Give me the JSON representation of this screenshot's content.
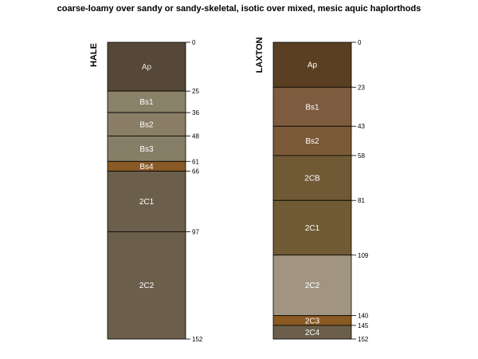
{
  "title": "coarse-loamy over sandy or sandy-skeletal, isotic over mixed, mesic aquic haplorthods",
  "profiles": [
    {
      "name": "HALE",
      "horizons": [
        {
          "label": "Ap",
          "top": 0,
          "bottom": 25,
          "color": "#564839",
          "text_color": "#e8e2d8"
        },
        {
          "label": "Bs1",
          "top": 25,
          "bottom": 36,
          "color": "#8a8268",
          "text_color": "#ffffff"
        },
        {
          "label": "Bs2",
          "top": 36,
          "bottom": 48,
          "color": "#8a7e66",
          "text_color": "#ffffff"
        },
        {
          "label": "Bs3",
          "top": 48,
          "bottom": 61,
          "color": "#867e66",
          "text_color": "#ffffff"
        },
        {
          "label": "Bs4",
          "top": 61,
          "bottom": 66,
          "color": "#8a5a26",
          "text_color": "#ffffff"
        },
        {
          "label": "2C1",
          "top": 66,
          "bottom": 97,
          "color": "#6b5f4b",
          "text_color": "#ffffff"
        },
        {
          "label": "2C2",
          "top": 97,
          "bottom": 152,
          "color": "#6b5f4b",
          "text_color": "#ffffff"
        }
      ]
    },
    {
      "name": "LAXTON",
      "horizons": [
        {
          "label": "Ap",
          "top": 0,
          "bottom": 23,
          "color": "#5b3f22",
          "text_color": "#ffffff"
        },
        {
          "label": "Bs1",
          "top": 23,
          "bottom": 43,
          "color": "#7e5b3e",
          "text_color": "#ffffff"
        },
        {
          "label": "Bs2",
          "top": 43,
          "bottom": 58,
          "color": "#7c5a38",
          "text_color": "#ffffff"
        },
        {
          "label": "2CB",
          "top": 58,
          "bottom": 81,
          "color": "#6f5a35",
          "text_color": "#ffffff"
        },
        {
          "label": "2C1",
          "top": 81,
          "bottom": 109,
          "color": "#705b35",
          "text_color": "#ffffff"
        },
        {
          "label": "2C2",
          "top": 109,
          "bottom": 140,
          "color": "#a19581",
          "text_color": "#ffffff"
        },
        {
          "label": "2C3",
          "top": 140,
          "bottom": 145,
          "color": "#8a5a22",
          "text_color": "#ffffff"
        },
        {
          "label": "2C4",
          "top": 145,
          "bottom": 152,
          "color": "#6b5f4b",
          "text_color": "#ffffff"
        }
      ]
    }
  ]
}
